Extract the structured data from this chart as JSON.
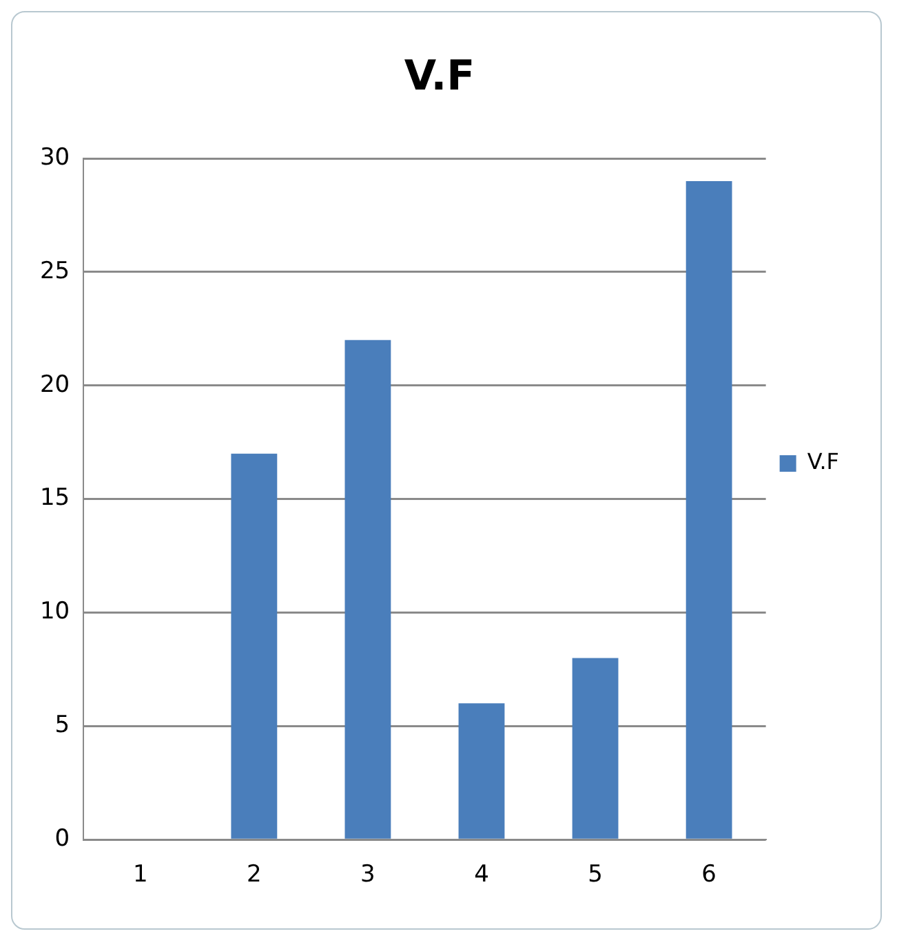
{
  "chart_data": {
    "type": "bar",
    "title": "V.F",
    "categories": [
      "1",
      "2",
      "3",
      "4",
      "5",
      "6"
    ],
    "series": [
      {
        "name": "V.F",
        "color": "#4a7ebb",
        "values": [
          0,
          17,
          22,
          6,
          8,
          29
        ]
      }
    ],
    "ylim": [
      0,
      30
    ],
    "yticks": [
      0,
      5,
      10,
      15,
      20,
      25,
      30
    ],
    "grid": "y",
    "legend": "right"
  }
}
